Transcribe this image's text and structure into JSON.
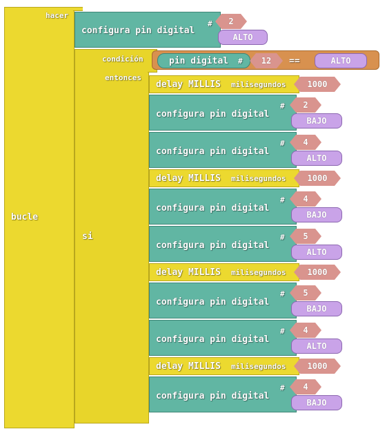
{
  "loop": {
    "label": "bucle",
    "do_label": "hacer"
  },
  "setup_pin": {
    "label": "configura pin digital",
    "hash": "#",
    "pin": "2",
    "state": "ALTO"
  },
  "if_block": {
    "label": "si",
    "condition_label": "condición",
    "then_label": "entonces",
    "condition": {
      "label": "pin digital",
      "hash": "#",
      "pin": "12",
      "op": "==",
      "value": "ALTO"
    }
  },
  "statements": [
    {
      "type": "delay",
      "label": "delay MILLIS",
      "unit": "milisegundos",
      "value": "1000"
    },
    {
      "type": "pin",
      "label": "configura pin digital",
      "hash": "#",
      "pin": "2",
      "state": "BAJO"
    },
    {
      "type": "pin",
      "label": "configura pin digital",
      "hash": "#",
      "pin": "4",
      "state": "ALTO"
    },
    {
      "type": "delay",
      "label": "delay MILLIS",
      "unit": "milisegundos",
      "value": "1000"
    },
    {
      "type": "pin",
      "label": "configura pin digital",
      "hash": "#",
      "pin": "4",
      "state": "BAJO"
    },
    {
      "type": "pin",
      "label": "configura pin digital",
      "hash": "#",
      "pin": "5",
      "state": "ALTO"
    },
    {
      "type": "delay",
      "label": "delay MILLIS",
      "unit": "milisegundos",
      "value": "1000"
    },
    {
      "type": "pin",
      "label": "configura pin digital",
      "hash": "#",
      "pin": "5",
      "state": "BAJO"
    },
    {
      "type": "pin",
      "label": "configura pin digital",
      "hash": "#",
      "pin": "4",
      "state": "ALTO"
    },
    {
      "type": "delay",
      "label": "delay MILLIS",
      "unit": "milisegundos",
      "value": "1000"
    },
    {
      "type": "pin",
      "label": "configura pin digital",
      "hash": "#",
      "pin": "4",
      "state": "BAJO"
    }
  ],
  "colors": {
    "control_yellow": "#ecd92f",
    "io_green": "#61b6a3",
    "number_pink": "#d9948e",
    "boolean_purple": "#c9a3e8",
    "logic_orange": "#d8914f"
  }
}
